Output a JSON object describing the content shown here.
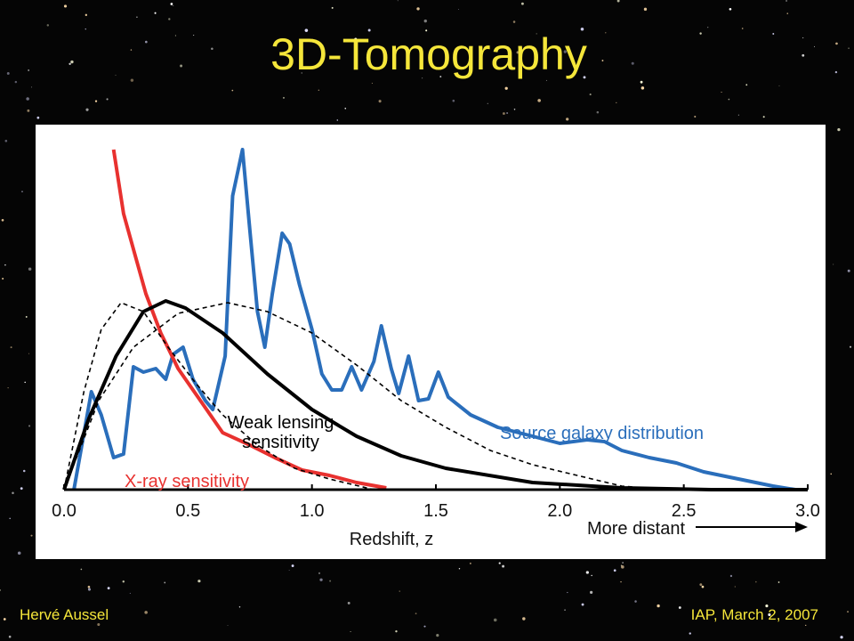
{
  "title": "3D-Tomography",
  "footer": {
    "left": "Hervé Aussel",
    "right": "IAP, March 2, 2007"
  },
  "chart_data": {
    "type": "line",
    "xlabel": "Redshift, z",
    "annotation": "More distant",
    "xlim": [
      0,
      3
    ],
    "ylim": [
      0,
      1
    ],
    "xticks": [
      {
        "value": 0,
        "label": "0.0"
      },
      0.5,
      {
        "value": 1,
        "label": "1.0"
      },
      1.5,
      {
        "value": 2,
        "label": "2.0"
      },
      2.5,
      {
        "value": 3,
        "label": "3.0"
      }
    ],
    "series": [
      {
        "name": "Source galaxy distribution",
        "color": "#2a6ebb",
        "x": [
          0.04,
          0.11,
          0.15,
          0.2,
          0.24,
          0.28,
          0.32,
          0.37,
          0.41,
          0.44,
          0.48,
          0.52,
          0.57,
          0.6,
          0.65,
          0.68,
          0.72,
          0.75,
          0.78,
          0.81,
          0.84,
          0.88,
          0.91,
          0.95,
          1.0,
          1.04,
          1.08,
          1.12,
          1.16,
          1.2,
          1.25,
          1.28,
          1.32,
          1.35,
          1.39,
          1.43,
          1.47,
          1.51,
          1.55,
          1.64,
          1.75,
          1.89,
          2.0,
          2.11,
          2.18,
          2.25,
          2.36,
          2.47,
          2.58,
          2.72,
          2.86,
          2.95
        ],
        "values": [
          0,
          0.275,
          0.21,
          0.09,
          0.1,
          0.345,
          0.33,
          0.34,
          0.31,
          0.38,
          0.4,
          0.31,
          0.25,
          0.225,
          0.375,
          0.825,
          0.955,
          0.725,
          0.5,
          0.4,
          0.55,
          0.72,
          0.69,
          0.575,
          0.45,
          0.325,
          0.28,
          0.28,
          0.345,
          0.28,
          0.36,
          0.46,
          0.34,
          0.27,
          0.375,
          0.25,
          0.255,
          0.33,
          0.26,
          0.21,
          0.175,
          0.15,
          0.13,
          0.14,
          0.135,
          0.11,
          0.09,
          0.075,
          0.05,
          0.03,
          0.01,
          0
        ]
      },
      {
        "name": "X-ray sensitivity",
        "color": "#e8312f",
        "x": [
          0.2,
          0.24,
          0.29,
          0.33,
          0.39,
          0.46,
          0.55,
          0.64,
          0.75,
          0.85,
          0.96,
          1.07,
          1.18,
          1.3
        ],
        "values": [
          0.955,
          0.775,
          0.65,
          0.55,
          0.44,
          0.34,
          0.25,
          0.16,
          0.125,
          0.09,
          0.055,
          0.04,
          0.02,
          0.005
        ]
      },
      {
        "name": "Weak lensing sensitivity",
        "color": "#000000",
        "x": [
          0,
          0.1,
          0.21,
          0.32,
          0.41,
          0.49,
          0.64,
          0.82,
          1.0,
          1.18,
          1.36,
          1.54,
          1.89,
          2.25,
          2.61,
          3.0
        ],
        "values": [
          0,
          0.2,
          0.375,
          0.5,
          0.53,
          0.51,
          0.44,
          0.325,
          0.225,
          0.15,
          0.095,
          0.06,
          0.02,
          0.005,
          0,
          0
        ]
      },
      {
        "color": "#000000",
        "dashed": true,
        "x": [
          0,
          0.08,
          0.15,
          0.23,
          0.32,
          0.42,
          0.53,
          0.64,
          0.78,
          0.93,
          1.07,
          1.25
        ],
        "values": [
          0,
          0.275,
          0.45,
          0.525,
          0.5,
          0.4,
          0.3,
          0.21,
          0.125,
          0.06,
          0.03,
          0
        ]
      },
      {
        "color": "#000000",
        "dashed": true,
        "x": [
          0,
          0.14,
          0.28,
          0.46,
          0.66,
          0.82,
          1.0,
          1.18,
          1.36,
          1.54,
          1.72,
          1.89,
          2.07,
          2.25,
          2.43
        ],
        "values": [
          0,
          0.25,
          0.4,
          0.495,
          0.525,
          0.5,
          0.44,
          0.35,
          0.25,
          0.175,
          0.11,
          0.07,
          0.04,
          0.01,
          0
        ]
      }
    ]
  }
}
